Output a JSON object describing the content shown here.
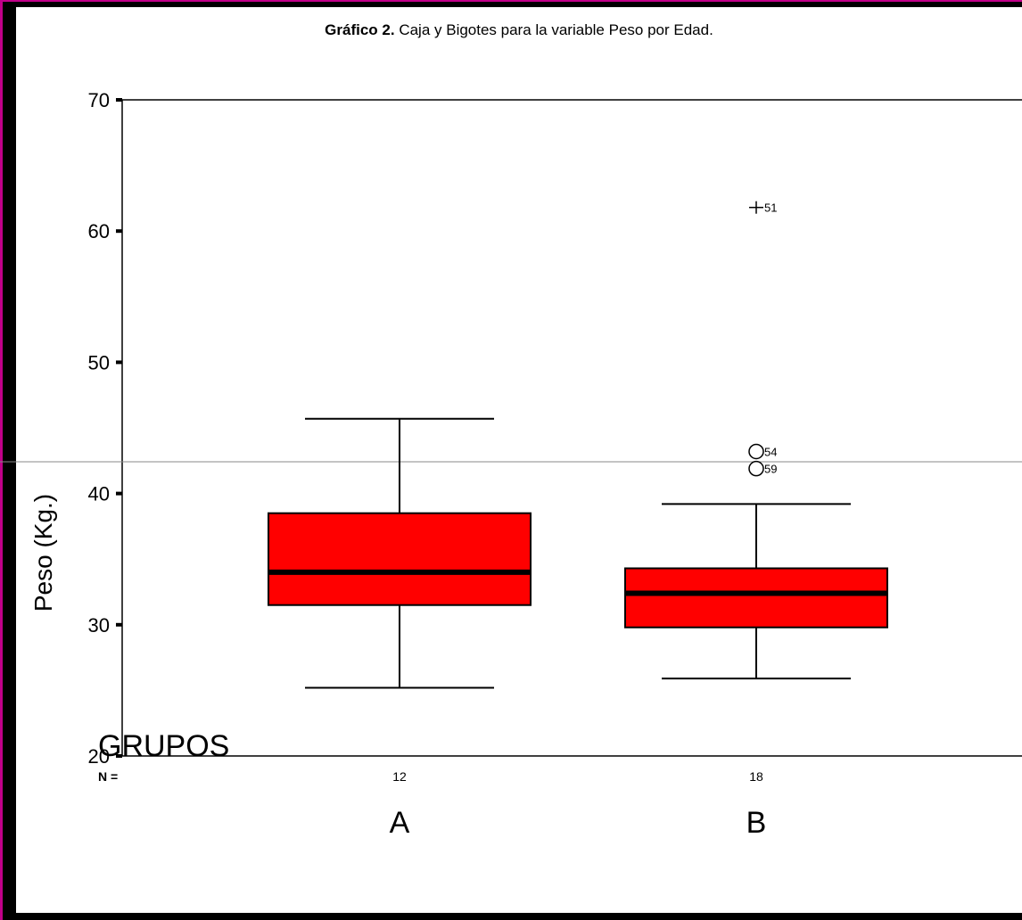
{
  "title": {
    "bold": "Gráfico 2.",
    "rest": " Caja y Bigotes para la variable Peso por Edad."
  },
  "colors": {
    "box_fill": "#ff0000",
    "frame": "#c1008a",
    "background": "#000000",
    "panel": "#ffffff"
  },
  "chart_data": {
    "type": "boxplot",
    "ylabel": "Peso (Kg.)",
    "xlabel": "GRUPOS",
    "ylim": [
      20,
      70
    ],
    "yticks": [
      20,
      30,
      40,
      50,
      60,
      70
    ],
    "n_label": "N =",
    "groups": [
      {
        "n": "12",
        "label": "A",
        "whisker_low": 25.2,
        "q1": 31.5,
        "median": 34.0,
        "q3": 38.5,
        "whisker_high": 45.7,
        "outliers": []
      },
      {
        "n": "18",
        "label": "B",
        "whisker_low": 25.9,
        "q1": 29.8,
        "median": 32.4,
        "q3": 34.3,
        "whisker_high": 39.2,
        "outliers": [
          {
            "value": 43.2,
            "id": "54",
            "kind": "circle"
          },
          {
            "value": 41.9,
            "id": "59",
            "kind": "circle"
          },
          {
            "value": 61.8,
            "id": "51",
            "kind": "extreme"
          }
        ]
      }
    ]
  }
}
